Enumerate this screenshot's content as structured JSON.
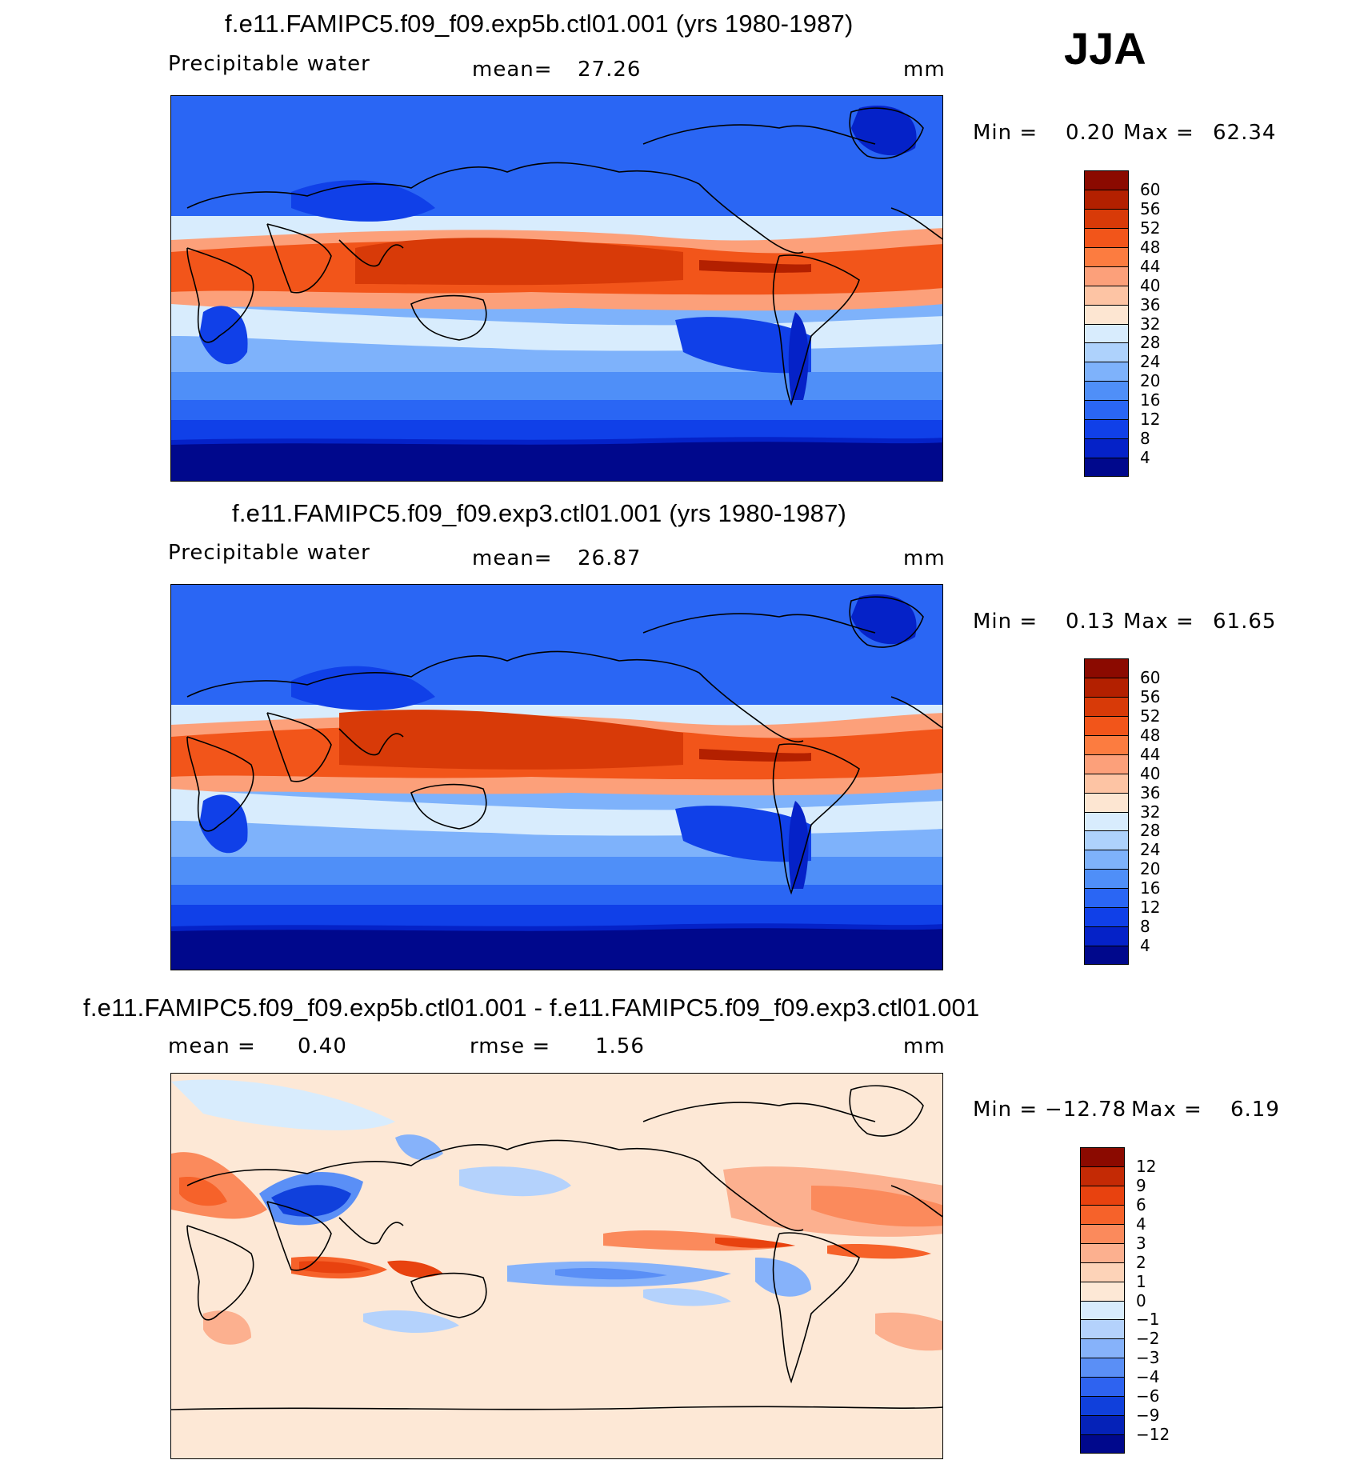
{
  "season": "JJA",
  "panels": [
    {
      "title": "f.e11.FAMIPC5.f09_f09.exp5b.ctl01.001 (yrs 1980-1987)",
      "variable": "Precipitable water",
      "stat_label": "mean=",
      "stat_value": "27.26",
      "units": "mm",
      "min_label": "Min =",
      "min_value": "0.20",
      "max_label": "Max =",
      "max_value": "62.34",
      "levels": [
        "60",
        "56",
        "52",
        "48",
        "44",
        "40",
        "36",
        "32",
        "28",
        "24",
        "20",
        "16",
        "12",
        "8",
        "4"
      ],
      "colors": [
        "#8b0a00",
        "#b32000",
        "#d83a08",
        "#f2551a",
        "#fc7c40",
        "#fca07a",
        "#fdc4a4",
        "#fde6d2",
        "#d8ecfd",
        "#aed2fc",
        "#7eb2fb",
        "#4f8ff8",
        "#2a66f4",
        "#1040e8",
        "#0522c8",
        "#00088c"
      ]
    },
    {
      "title": "f.e11.FAMIPC5.f09_f09.exp3.ctl01.001 (yrs 1980-1987)",
      "variable": "Precipitable water",
      "stat_label": "mean=",
      "stat_value": "26.87",
      "units": "mm",
      "min_label": "Min =",
      "min_value": "0.13",
      "max_label": "Max =",
      "max_value": "61.65",
      "levels": [
        "60",
        "56",
        "52",
        "48",
        "44",
        "40",
        "36",
        "32",
        "28",
        "24",
        "20",
        "16",
        "12",
        "8",
        "4"
      ],
      "colors": [
        "#8b0a00",
        "#b32000",
        "#d83a08",
        "#f2551a",
        "#fc7c40",
        "#fca07a",
        "#fdc4a4",
        "#fde6d2",
        "#d8ecfd",
        "#aed2fc",
        "#7eb2fb",
        "#4f8ff8",
        "#2a66f4",
        "#1040e8",
        "#0522c8",
        "#00088c"
      ]
    },
    {
      "title": "f.e11.FAMIPC5.f09_f09.exp5b.ctl01.001 - f.e11.FAMIPC5.f09_f09.exp3.ctl01.001",
      "stat_label": "mean =",
      "stat_value": "0.40",
      "rmse_label": "rmse =",
      "rmse_value": "1.56",
      "units": "mm",
      "min_label": "Min =",
      "min_value": "−12.78",
      "max_label": "Max =",
      "max_value": "6.19",
      "levels": [
        "12",
        "9",
        "6",
        "4",
        "3",
        "2",
        "1",
        "0",
        "−1",
        "−2",
        "−3",
        "−4",
        "−6",
        "−9",
        "−12"
      ],
      "colors": [
        "#8b0a00",
        "#c42a05",
        "#e8420f",
        "#f6622a",
        "#fb8a5c",
        "#fcb08f",
        "#fdd3b8",
        "#fde8d6",
        "#d8ecfd",
        "#b4d2fc",
        "#86b2fa",
        "#5a8ff6",
        "#2e63f0",
        "#1040dc",
        "#0522b8",
        "#00088c"
      ]
    }
  ]
}
